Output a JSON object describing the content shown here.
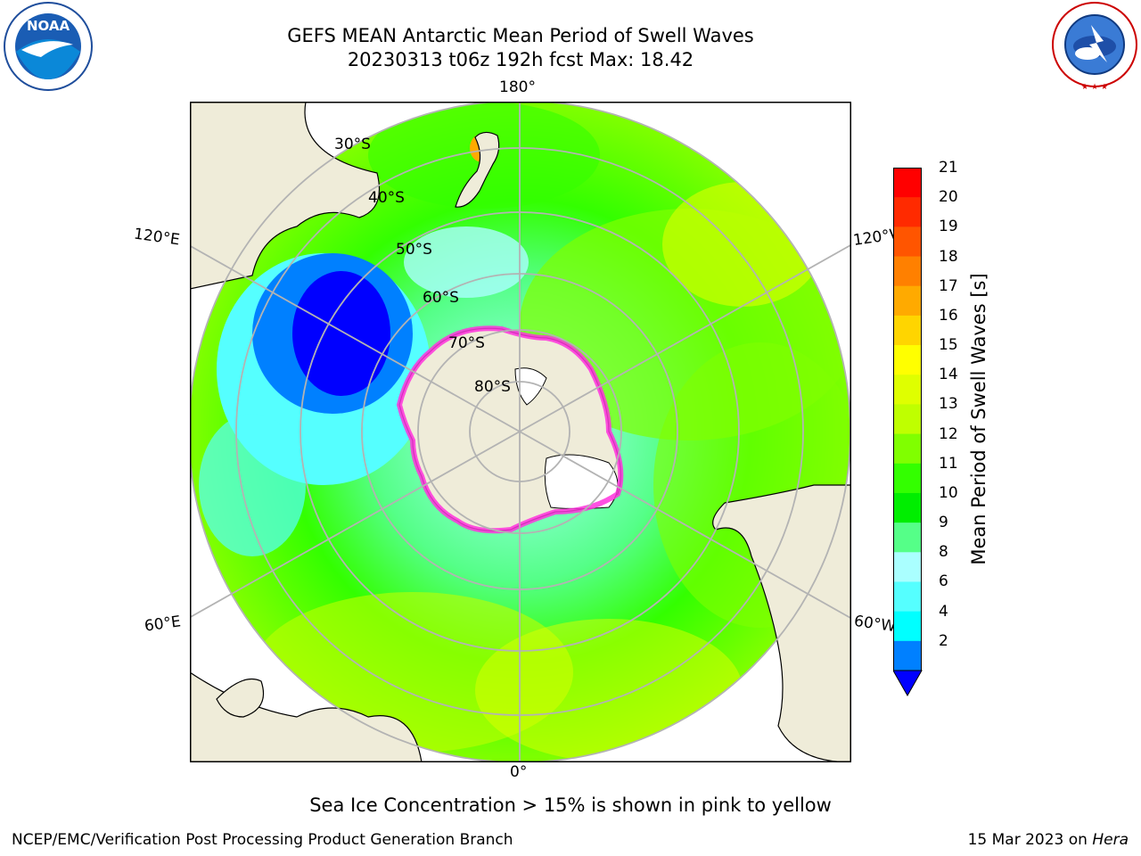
{
  "title": {
    "line1": "GEFS MEAN Antarctic Mean Period of Swell Waves",
    "line2": "20230313 t06z 192h fcst   Max: 18.42"
  },
  "logos": {
    "left": "NOAA",
    "left_ring_text": "NATIONAL OCEANIC AND ATMOSPHERIC ADMINISTRATION · U.S. DEPARTMENT OF COMMERCE",
    "right_ring_text": "NATIONAL WEATHER SERVICE"
  },
  "map": {
    "projection": "south-polar-stereographic",
    "lon_labels": {
      "top": "180°",
      "bottom": "0°",
      "upper_left": "120°E",
      "upper_right": "120°W",
      "lower_left": "60°E",
      "lower_right": "60°W"
    },
    "lat_labels": [
      "30°S",
      "40°S",
      "50°S",
      "60°S",
      "70°S",
      "80°S"
    ],
    "colors": {
      "land": "#efecd9",
      "ice_shelf": "#ffffff",
      "gridlines": "#b3b3b3",
      "sea_ice_edge": "#ff33dd"
    }
  },
  "colorbar": {
    "label": "Mean Period of Swell Waves [s]",
    "ticks": [
      "21",
      "20",
      "19",
      "18",
      "17",
      "16",
      "15",
      "14",
      "13",
      "12",
      "11",
      "10",
      "9",
      "8",
      "6",
      "4",
      "2"
    ],
    "colors": [
      "#ff0000",
      "#ff2a00",
      "#ff5500",
      "#ff8000",
      "#ffaa00",
      "#ffd500",
      "#ffff00",
      "#dfff00",
      "#bfff00",
      "#80ff00",
      "#33ff00",
      "#00ee00",
      "#55ff88",
      "#aaffff",
      "#55ffff",
      "#00ffff",
      "#0080ff"
    ],
    "extend_color": "#0000ff"
  },
  "note": "Sea Ice Concentration > 15% is shown in pink to yellow",
  "footer": {
    "left": "NCEP/EMC/Verification Post Processing Product Generation Branch",
    "date": "15 Mar 2023 on",
    "host": "Hera"
  }
}
